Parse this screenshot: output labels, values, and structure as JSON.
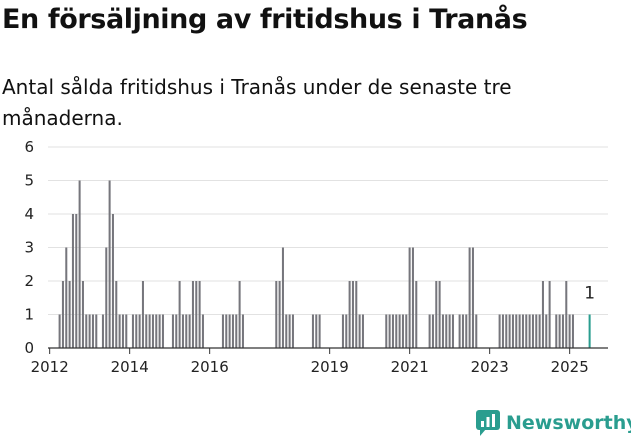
{
  "title": "En försäljning av fritidshus i Tranås",
  "subtitle": "Antal sålda fritidshus i Tranås under de senaste tre månaderna.",
  "brand": {
    "name": "Newsworthy",
    "icon": "newsworthy-logo-icon",
    "color": "#2a9d8f"
  },
  "chart_data": {
    "type": "bar",
    "title": "",
    "xlabel": "",
    "ylabel": "",
    "x_unit": "month",
    "ylim": [
      0,
      6
    ],
    "y_ticks": [
      "0",
      "1",
      "2",
      "3",
      "4",
      "5",
      "6"
    ],
    "x_ticks": [
      {
        "label": "2012",
        "value": "2012-01"
      },
      {
        "label": "2014",
        "value": "2014-01"
      },
      {
        "label": "2016",
        "value": "2016-01"
      },
      {
        "label": "2019",
        "value": "2019-01"
      },
      {
        "label": "2021",
        "value": "2021-01"
      },
      {
        "label": "2023",
        "value": "2023-01"
      },
      {
        "label": "2025",
        "value": "2025-01"
      }
    ],
    "x_range": [
      "2012-01",
      "2025-12"
    ],
    "grid": true,
    "bar_color": "#76767c",
    "highlight_color": "#2a9d8f",
    "series": [
      {
        "values": [
          {
            "x": "2012-04",
            "y": 1
          },
          {
            "x": "2012-05",
            "y": 2
          },
          {
            "x": "2012-06",
            "y": 3
          },
          {
            "x": "2012-07",
            "y": 2
          },
          {
            "x": "2012-08",
            "y": 4
          },
          {
            "x": "2012-09",
            "y": 4
          },
          {
            "x": "2012-10",
            "y": 5
          },
          {
            "x": "2012-11",
            "y": 2
          },
          {
            "x": "2012-12",
            "y": 1
          },
          {
            "x": "2013-01",
            "y": 1
          },
          {
            "x": "2013-02",
            "y": 1
          },
          {
            "x": "2013-03",
            "y": 1
          },
          {
            "x": "2013-05",
            "y": 1
          },
          {
            "x": "2013-06",
            "y": 3
          },
          {
            "x": "2013-07",
            "y": 5
          },
          {
            "x": "2013-08",
            "y": 4
          },
          {
            "x": "2013-09",
            "y": 2
          },
          {
            "x": "2013-10",
            "y": 1
          },
          {
            "x": "2013-11",
            "y": 1
          },
          {
            "x": "2013-12",
            "y": 1
          },
          {
            "x": "2014-02",
            "y": 1
          },
          {
            "x": "2014-03",
            "y": 1
          },
          {
            "x": "2014-04",
            "y": 1
          },
          {
            "x": "2014-05",
            "y": 2
          },
          {
            "x": "2014-06",
            "y": 1
          },
          {
            "x": "2014-07",
            "y": 1
          },
          {
            "x": "2014-08",
            "y": 1
          },
          {
            "x": "2014-09",
            "y": 1
          },
          {
            "x": "2014-10",
            "y": 1
          },
          {
            "x": "2014-11",
            "y": 1
          },
          {
            "x": "2015-02",
            "y": 1
          },
          {
            "x": "2015-03",
            "y": 1
          },
          {
            "x": "2015-04",
            "y": 2
          },
          {
            "x": "2015-05",
            "y": 1
          },
          {
            "x": "2015-06",
            "y": 1
          },
          {
            "x": "2015-07",
            "y": 1
          },
          {
            "x": "2015-08",
            "y": 2
          },
          {
            "x": "2015-09",
            "y": 2
          },
          {
            "x": "2015-10",
            "y": 2
          },
          {
            "x": "2015-11",
            "y": 1
          },
          {
            "x": "2016-05",
            "y": 1
          },
          {
            "x": "2016-06",
            "y": 1
          },
          {
            "x": "2016-07",
            "y": 1
          },
          {
            "x": "2016-08",
            "y": 1
          },
          {
            "x": "2016-09",
            "y": 1
          },
          {
            "x": "2016-10",
            "y": 2
          },
          {
            "x": "2016-11",
            "y": 1
          },
          {
            "x": "2017-09",
            "y": 2
          },
          {
            "x": "2017-10",
            "y": 2
          },
          {
            "x": "2017-11",
            "y": 3
          },
          {
            "x": "2017-12",
            "y": 1
          },
          {
            "x": "2018-01",
            "y": 1
          },
          {
            "x": "2018-02",
            "y": 1
          },
          {
            "x": "2018-08",
            "y": 1
          },
          {
            "x": "2018-09",
            "y": 1
          },
          {
            "x": "2018-10",
            "y": 1
          },
          {
            "x": "2019-05",
            "y": 1
          },
          {
            "x": "2019-06",
            "y": 1
          },
          {
            "x": "2019-07",
            "y": 2
          },
          {
            "x": "2019-08",
            "y": 2
          },
          {
            "x": "2019-09",
            "y": 2
          },
          {
            "x": "2019-10",
            "y": 1
          },
          {
            "x": "2019-11",
            "y": 1
          },
          {
            "x": "2020-06",
            "y": 1
          },
          {
            "x": "2020-07",
            "y": 1
          },
          {
            "x": "2020-08",
            "y": 1
          },
          {
            "x": "2020-09",
            "y": 1
          },
          {
            "x": "2020-10",
            "y": 1
          },
          {
            "x": "2020-11",
            "y": 1
          },
          {
            "x": "2020-12",
            "y": 1
          },
          {
            "x": "2021-01",
            "y": 3
          },
          {
            "x": "2021-02",
            "y": 3
          },
          {
            "x": "2021-03",
            "y": 2
          },
          {
            "x": "2021-07",
            "y": 1
          },
          {
            "x": "2021-08",
            "y": 1
          },
          {
            "x": "2021-09",
            "y": 2
          },
          {
            "x": "2021-10",
            "y": 2
          },
          {
            "x": "2021-11",
            "y": 1
          },
          {
            "x": "2021-12",
            "y": 1
          },
          {
            "x": "2022-01",
            "y": 1
          },
          {
            "x": "2022-02",
            "y": 1
          },
          {
            "x": "2022-04",
            "y": 1
          },
          {
            "x": "2022-05",
            "y": 1
          },
          {
            "x": "2022-06",
            "y": 1
          },
          {
            "x": "2022-07",
            "y": 3
          },
          {
            "x": "2022-08",
            "y": 3
          },
          {
            "x": "2022-09",
            "y": 1
          },
          {
            "x": "2023-04",
            "y": 1
          },
          {
            "x": "2023-05",
            "y": 1
          },
          {
            "x": "2023-06",
            "y": 1
          },
          {
            "x": "2023-07",
            "y": 1
          },
          {
            "x": "2023-08",
            "y": 1
          },
          {
            "x": "2023-09",
            "y": 1
          },
          {
            "x": "2023-10",
            "y": 1
          },
          {
            "x": "2023-11",
            "y": 1
          },
          {
            "x": "2023-12",
            "y": 1
          },
          {
            "x": "2024-01",
            "y": 1
          },
          {
            "x": "2024-02",
            "y": 1
          },
          {
            "x": "2024-03",
            "y": 1
          },
          {
            "x": "2024-04",
            "y": 1
          },
          {
            "x": "2024-05",
            "y": 2
          },
          {
            "x": "2024-06",
            "y": 1
          },
          {
            "x": "2024-07",
            "y": 2
          },
          {
            "x": "2024-09",
            "y": 1
          },
          {
            "x": "2024-10",
            "y": 1
          },
          {
            "x": "2024-11",
            "y": 1
          },
          {
            "x": "2024-12",
            "y": 2
          },
          {
            "x": "2025-01",
            "y": 1
          },
          {
            "x": "2025-02",
            "y": 1
          },
          {
            "x": "2025-07",
            "y": 1,
            "highlight": true
          }
        ]
      }
    ],
    "annotations": [
      {
        "x": "2025-07",
        "text": "1"
      }
    ]
  }
}
